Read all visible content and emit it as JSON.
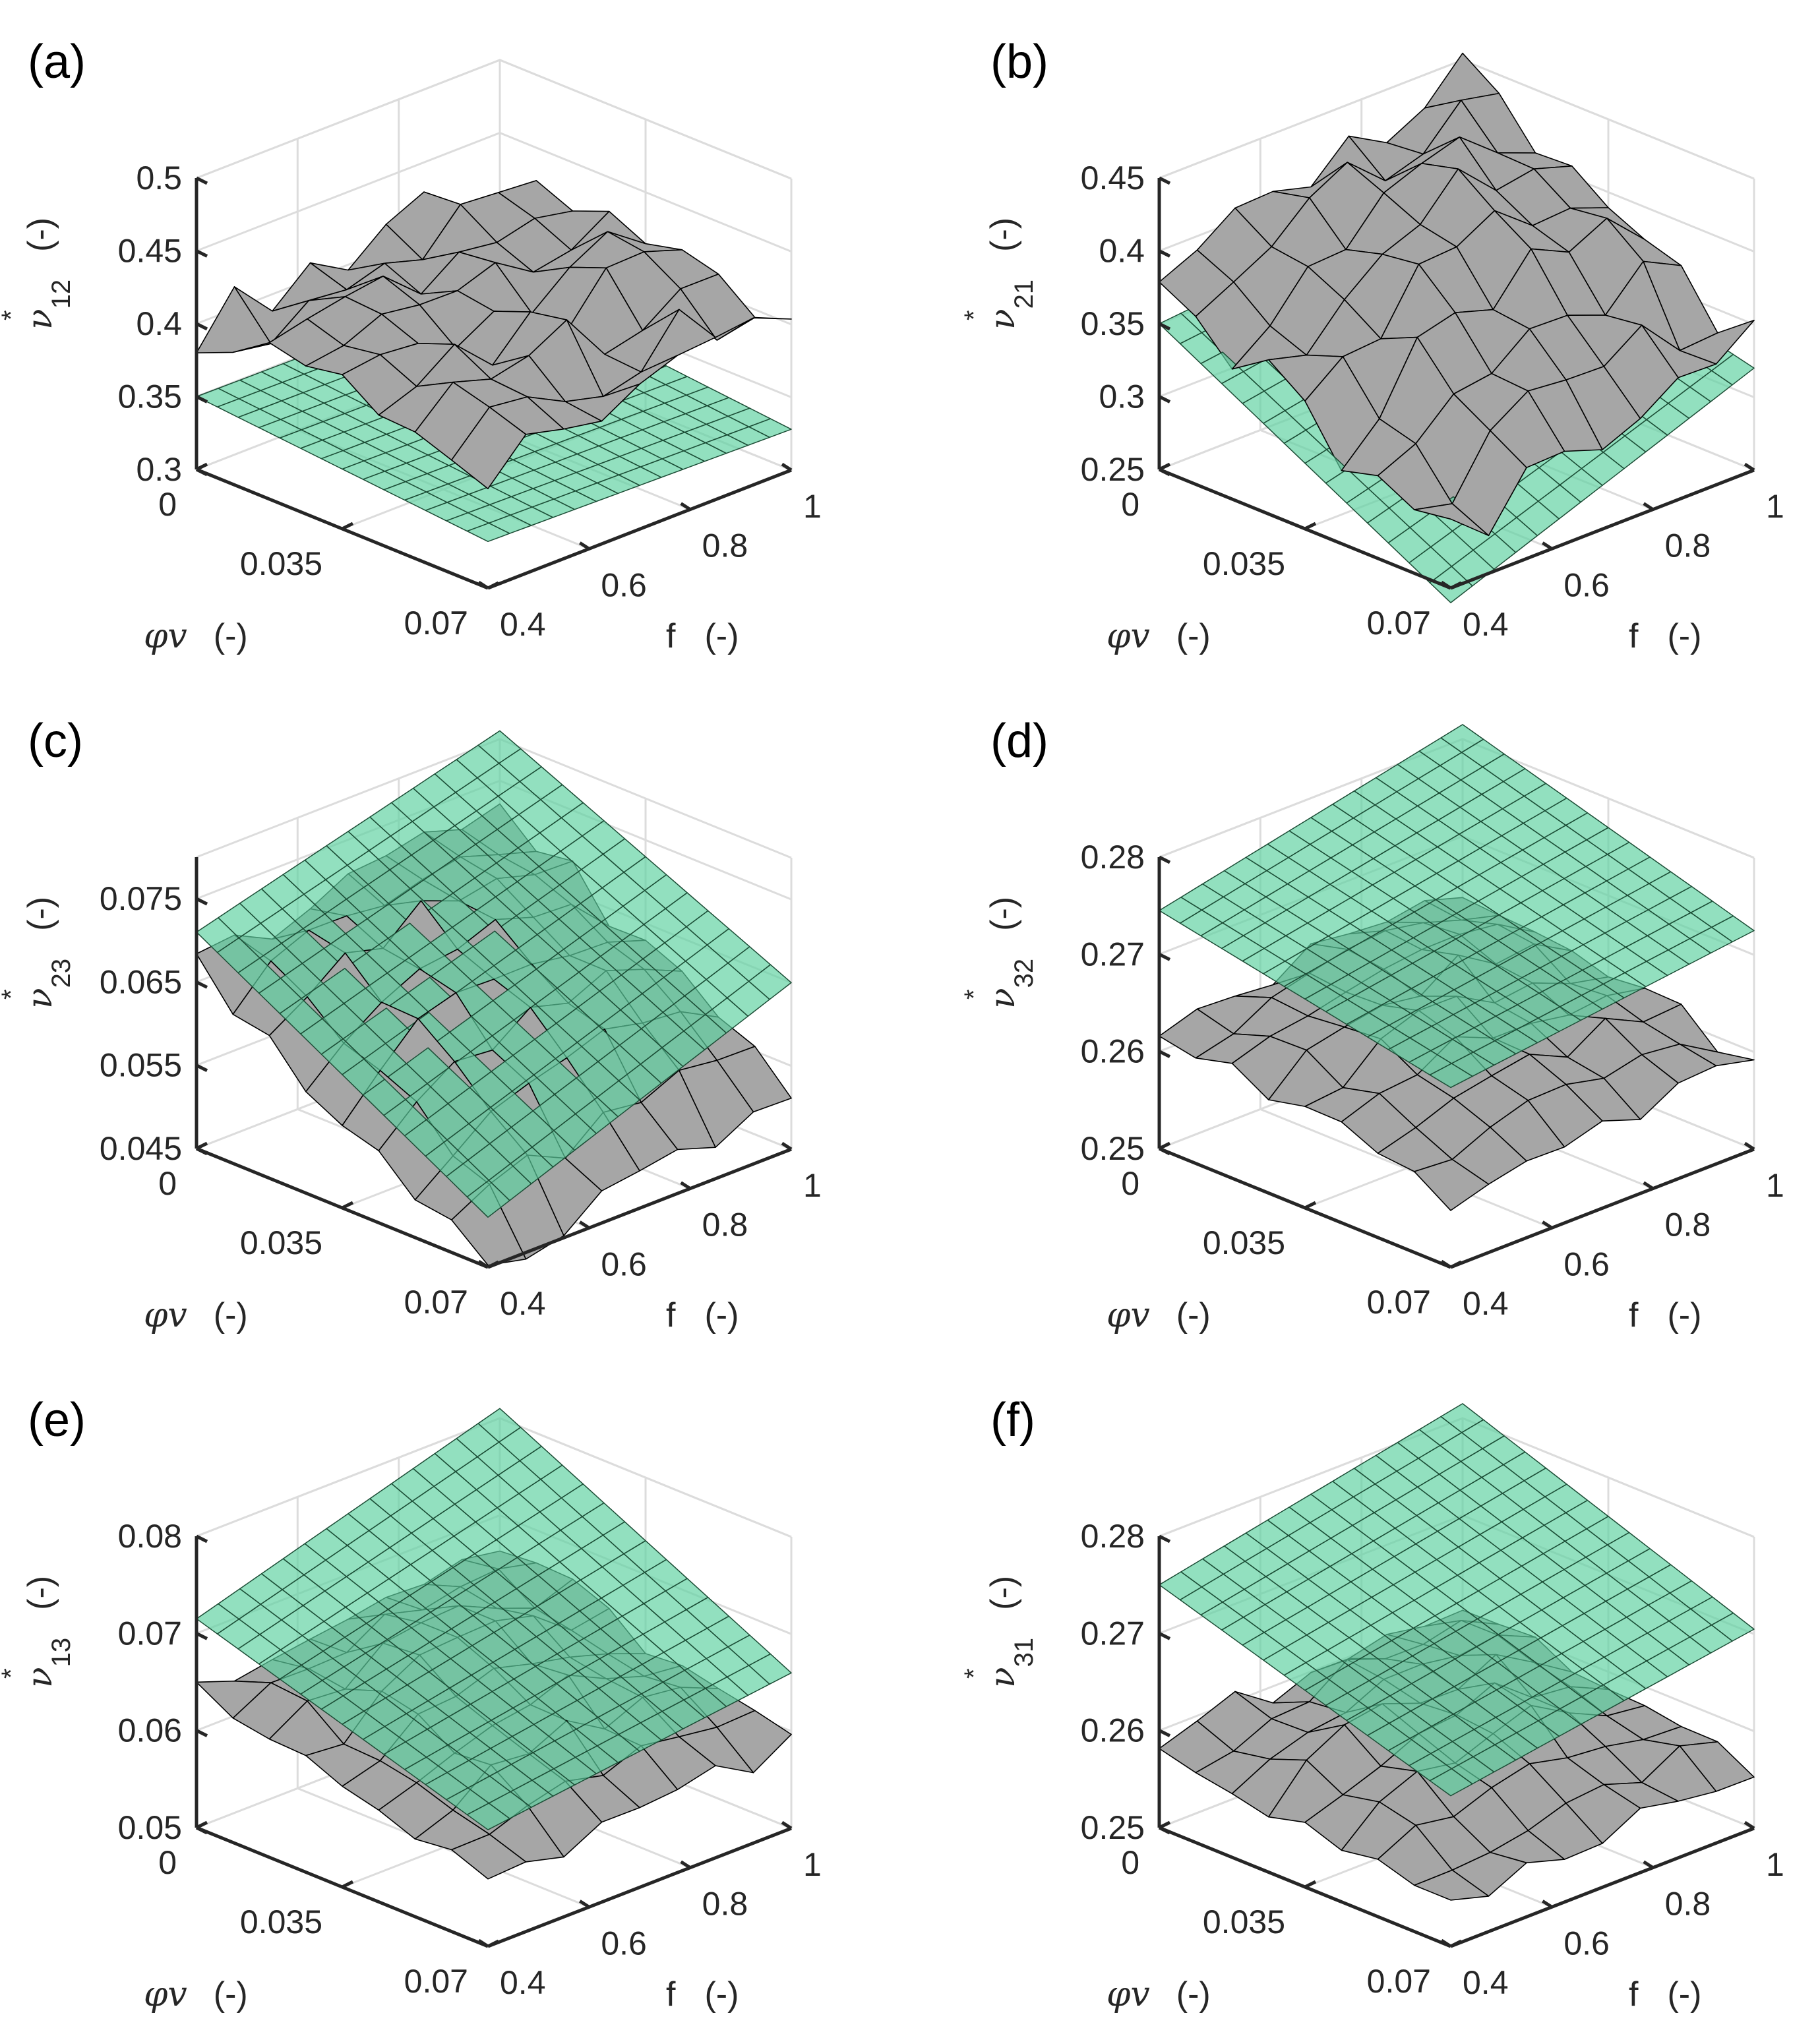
{
  "chart_data": [
    {
      "type": "surface",
      "panel_label": "(a)",
      "zlabel": "ν*12 (-)",
      "zlabel_sym": "ν",
      "zlabel_sup": "*",
      "zlabel_sub": "12",
      "zlabel_unit": "(-)",
      "xlabel_sym": "φv",
      "xlabel_unit": "(-)",
      "ylabel_sym": "f",
      "ylabel_unit": "(-)",
      "x_ticks": [
        "0",
        "0.035",
        "0.07"
      ],
      "y_ticks": [
        "0.4",
        "0.6",
        "0.8",
        "1"
      ],
      "z_ticks": [
        "0.3",
        "0.35",
        "0.4",
        "0.45",
        "0.5"
      ],
      "x_range": [
        0,
        0.07
      ],
      "y_range": [
        0.4,
        1.0
      ],
      "z_range": [
        0.3,
        0.5
      ],
      "gray_surface": {
        "base": 0.4,
        "slope_x": -0.02,
        "slope_y": 0.02,
        "dome": 0.015,
        "noise": 0.02
      },
      "green_plane": {
        "corners_z": [
          0.35,
          0.348,
          0.332,
          0.328
        ]
      }
    },
    {
      "type": "surface",
      "panel_label": "(b)",
      "zlabel": "ν*21 (-)",
      "zlabel_sym": "ν",
      "zlabel_sup": "*",
      "zlabel_sub": "21",
      "zlabel_unit": "(-)",
      "xlabel_sym": "φv",
      "xlabel_unit": "(-)",
      "ylabel_sym": "f",
      "ylabel_unit": "(-)",
      "x_ticks": [
        "0",
        "0.035",
        "0.07"
      ],
      "y_ticks": [
        "0.4",
        "0.6",
        "0.8",
        "1"
      ],
      "z_ticks": [
        "0.25",
        "0.3",
        "0.35",
        "0.4",
        "0.45"
      ],
      "x_range": [
        0,
        0.07
      ],
      "y_range": [
        0.4,
        1.0
      ],
      "z_range": [
        0.25,
        0.45
      ],
      "gray_surface": {
        "base": 0.38,
        "slope_x": -0.1,
        "slope_y": 0.06,
        "dome": 0.045,
        "noise": 0.02
      },
      "green_plane": {
        "corners_z": [
          0.35,
          0.37,
          0.24,
          0.32
        ]
      }
    },
    {
      "type": "surface",
      "panel_label": "(c)",
      "zlabel": "ν*23 (-)",
      "zlabel_sym": "ν",
      "zlabel_sup": "*",
      "zlabel_sub": "23",
      "zlabel_unit": "(-)",
      "xlabel_sym": "φv",
      "xlabel_unit": "(-)",
      "ylabel_sym": "f",
      "ylabel_unit": "(-)",
      "x_ticks": [
        "0",
        "0.035",
        "0.07"
      ],
      "y_ticks": [
        "0.4",
        "0.6",
        "0.8",
        "1"
      ],
      "z_ticks": [
        "0.045",
        "0.055",
        "0.065",
        "0.075"
      ],
      "x_range": [
        0,
        0.07
      ],
      "y_range": [
        0.4,
        1.0
      ],
      "z_range": [
        0.045,
        0.08
      ],
      "gray_surface": {
        "base": 0.067,
        "slope_x": -0.022,
        "slope_y": 0.006,
        "dome": 0.008,
        "noise": 0.002
      },
      "green_plane": {
        "corners_z": [
          0.071,
          0.081,
          0.051,
          0.065
        ]
      }
    },
    {
      "type": "surface",
      "panel_label": "(d)",
      "zlabel": "ν*32 (-)",
      "zlabel_sym": "ν",
      "zlabel_sup": "*",
      "zlabel_sub": "32",
      "zlabel_unit": "(-)",
      "xlabel_sym": "φv",
      "xlabel_unit": "(-)",
      "ylabel_sym": "f",
      "ylabel_unit": "(-)",
      "x_ticks": [
        "0",
        "0.035",
        "0.07"
      ],
      "y_ticks": [
        "0.4",
        "0.6",
        "0.8",
        "1"
      ],
      "z_ticks": [
        "0.25",
        "0.26",
        "0.27",
        "0.28"
      ],
      "x_range": [
        0,
        0.07
      ],
      "y_range": [
        0.4,
        1.0
      ],
      "z_range": [
        0.25,
        0.28
      ],
      "gray_surface": {
        "base": 0.263,
        "slope_x": -0.006,
        "slope_y": 0.002,
        "dome": 0.004,
        "noise": 0.0015
      },
      "green_plane": {
        "corners_z": [
          0.2745,
          0.2815,
          0.2685,
          0.2725
        ]
      }
    },
    {
      "type": "surface",
      "panel_label": "(e)",
      "zlabel": "ν*13 (-)",
      "zlabel_sym": "ν",
      "zlabel_sup": "*",
      "zlabel_sub": "13",
      "zlabel_unit": "(-)",
      "xlabel_sym": "φv",
      "xlabel_unit": "(-)",
      "ylabel_sym": "f",
      "ylabel_unit": "(-)",
      "x_ticks": [
        "0",
        "0.035",
        "0.07"
      ],
      "y_ticks": [
        "0.4",
        "0.6",
        "0.8",
        "1"
      ],
      "z_ticks": [
        "0.05",
        "0.06",
        "0.07",
        "0.08"
      ],
      "x_range": [
        0,
        0.07
      ],
      "y_range": [
        0.4,
        1.0
      ],
      "z_range": [
        0.05,
        0.08
      ],
      "gray_surface": {
        "base": 0.064,
        "slope_x": -0.008,
        "slope_y": 0.003,
        "dome": 0.005,
        "noise": 0.0015
      },
      "green_plane": {
        "corners_z": [
          0.0715,
          0.081,
          0.062,
          0.066
        ]
      }
    },
    {
      "type": "surface",
      "panel_label": "(f)",
      "zlabel": "ν*31 (-)",
      "zlabel_sym": "ν",
      "zlabel_sup": "*",
      "zlabel_sub": "31",
      "zlabel_unit": "(-)",
      "xlabel_sym": "φv",
      "xlabel_unit": "(-)",
      "ylabel_sym": "f",
      "ylabel_unit": "(-)",
      "x_ticks": [
        "0",
        "0.035",
        "0.07"
      ],
      "y_ticks": [
        "0.4",
        "0.6",
        "0.8",
        "1"
      ],
      "z_ticks": [
        "0.25",
        "0.26",
        "0.27",
        "0.28"
      ],
      "x_range": [
        0,
        0.07
      ],
      "y_range": [
        0.4,
        1.0
      ],
      "z_range": [
        0.25,
        0.28
      ],
      "gray_surface": {
        "base": 0.259,
        "slope_x": -0.005,
        "slope_y": 0.002,
        "dome": 0.005,
        "noise": 0.0015
      },
      "green_plane": {
        "corners_z": [
          0.275,
          0.2815,
          0.2655,
          0.2705
        ]
      }
    }
  ],
  "colors": {
    "gray_surface": "#a6a6a6",
    "green_plane": "#5ed1a0",
    "axis": "#262626",
    "grid": "#dcdcdc"
  }
}
